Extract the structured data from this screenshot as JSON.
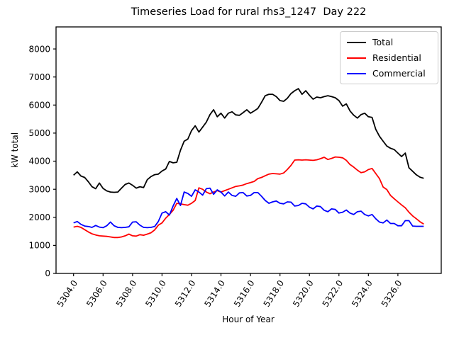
{
  "title": "Timeseries Load for rural rhs3_1247  Day 222",
  "chart_data": {
    "type": "line",
    "title": "Timeseries Load for rural rhs3_1247  Day 222",
    "xlabel": "Hour of Year",
    "ylabel": "kW total",
    "grid": false,
    "legend_position": "upper right",
    "xlim": [
      5302.81,
      5328.94
    ],
    "ylim": [
      0,
      8785
    ],
    "xticks": [
      5304,
      5306,
      5308,
      5310,
      5312,
      5314,
      5316,
      5318,
      5320,
      5322,
      5324,
      5326
    ],
    "xtick_labels": [
      "5304.0",
      "5306.0",
      "5308.0",
      "5310.0",
      "5312.0",
      "5314.0",
      "5316.0",
      "5318.0",
      "5320.0",
      "5322.0",
      "5324.0",
      "5326.0"
    ],
    "yticks": [
      0,
      1000,
      2000,
      3000,
      4000,
      5000,
      6000,
      7000,
      8000
    ],
    "ytick_labels": [
      "0",
      "1000",
      "2000",
      "3000",
      "4000",
      "5000",
      "6000",
      "7000",
      "8000"
    ],
    "x": [
      5304,
      5304.25,
      5304.5,
      5304.75,
      5305,
      5305.25,
      5305.5,
      5305.75,
      5306,
      5306.25,
      5306.5,
      5306.75,
      5307,
      5307.25,
      5307.5,
      5307.75,
      5308,
      5308.25,
      5308.5,
      5308.75,
      5309,
      5309.25,
      5309.5,
      5309.75,
      5310,
      5310.25,
      5310.5,
      5310.75,
      5311,
      5311.25,
      5311.5,
      5311.75,
      5312,
      5312.25,
      5312.5,
      5312.75,
      5313,
      5313.25,
      5313.5,
      5313.75,
      5314,
      5314.25,
      5314.5,
      5314.75,
      5315,
      5315.25,
      5315.5,
      5315.75,
      5316,
      5316.25,
      5316.5,
      5316.75,
      5317,
      5317.25,
      5317.5,
      5317.75,
      5318,
      5318.25,
      5318.5,
      5318.75,
      5319,
      5319.25,
      5319.5,
      5319.75,
      5320,
      5320.25,
      5320.5,
      5320.75,
      5321,
      5321.25,
      5321.5,
      5321.75,
      5322,
      5322.25,
      5322.5,
      5322.75,
      5323,
      5323.25,
      5323.5,
      5323.75,
      5324,
      5324.25,
      5324.5,
      5324.75,
      5325,
      5325.25,
      5325.5,
      5325.75,
      5326,
      5326.25,
      5326.5,
      5326.75,
      5327,
      5327.25,
      5327.5,
      5327.75
    ],
    "series": [
      {
        "name": "Total",
        "color": "#000000",
        "values": [
          3500,
          3620,
          3470,
          3420,
          3270,
          3090,
          3020,
          3220,
          3030,
          2940,
          2900,
          2890,
          2900,
          3040,
          3170,
          3220,
          3140,
          3040,
          3090,
          3060,
          3340,
          3450,
          3520,
          3540,
          3650,
          3720,
          3990,
          3940,
          3960,
          4390,
          4710,
          4790,
          5090,
          5260,
          5040,
          5210,
          5390,
          5660,
          5835,
          5585,
          5710,
          5535,
          5710,
          5760,
          5650,
          5635,
          5730,
          5835,
          5710,
          5790,
          5880,
          6100,
          6335,
          6385,
          6385,
          6300,
          6160,
          6135,
          6240,
          6410,
          6510,
          6585,
          6385,
          6510,
          6350,
          6210,
          6285,
          6260,
          6300,
          6335,
          6300,
          6260,
          6160,
          5960,
          6040,
          5790,
          5640,
          5535,
          5660,
          5710,
          5585,
          5560,
          5135,
          4890,
          4710,
          4540,
          4460,
          4415,
          4290,
          4165,
          4290,
          3765,
          3640,
          3515,
          3430,
          3390
        ]
      },
      {
        "name": "Residential",
        "color": "#ff0000",
        "values": [
          1650,
          1680,
          1640,
          1560,
          1480,
          1410,
          1370,
          1340,
          1330,
          1320,
          1300,
          1280,
          1280,
          1300,
          1340,
          1400,
          1340,
          1330,
          1380,
          1360,
          1400,
          1450,
          1550,
          1720,
          1800,
          1970,
          2100,
          2250,
          2500,
          2480,
          2450,
          2430,
          2500,
          2600,
          3050,
          3000,
          2900,
          2840,
          2900,
          2950,
          2900,
          2950,
          3000,
          3050,
          3100,
          3120,
          3150,
          3200,
          3240,
          3280,
          3380,
          3420,
          3480,
          3540,
          3560,
          3550,
          3540,
          3580,
          3700,
          3850,
          4040,
          4050,
          4040,
          4050,
          4040,
          4030,
          4050,
          4090,
          4140,
          4060,
          4100,
          4150,
          4140,
          4120,
          4030,
          3880,
          3790,
          3680,
          3590,
          3620,
          3700,
          3740,
          3560,
          3380,
          3080,
          2990,
          2780,
          2660,
          2550,
          2440,
          2340,
          2180,
          2050,
          1950,
          1840,
          1760
        ]
      },
      {
        "name": "Commercial",
        "color": "#0000ff",
        "values": [
          1800,
          1850,
          1750,
          1690,
          1670,
          1640,
          1710,
          1650,
          1630,
          1700,
          1830,
          1700,
          1640,
          1630,
          1640,
          1660,
          1830,
          1840,
          1720,
          1640,
          1630,
          1640,
          1670,
          1850,
          2150,
          2200,
          2080,
          2400,
          2670,
          2420,
          2900,
          2850,
          2750,
          2980,
          2900,
          2790,
          3020,
          3040,
          2820,
          2980,
          2900,
          2760,
          2900,
          2780,
          2750,
          2870,
          2880,
          2760,
          2780,
          2880,
          2880,
          2750,
          2600,
          2500,
          2550,
          2580,
          2500,
          2480,
          2550,
          2540,
          2400,
          2420,
          2500,
          2480,
          2360,
          2300,
          2400,
          2380,
          2250,
          2200,
          2300,
          2280,
          2150,
          2180,
          2260,
          2150,
          2100,
          2200,
          2220,
          2100,
          2050,
          2100,
          1950,
          1830,
          1800,
          1900,
          1780,
          1780,
          1700,
          1700,
          1880,
          1880,
          1690,
          1680,
          1680,
          1680
        ]
      }
    ]
  }
}
